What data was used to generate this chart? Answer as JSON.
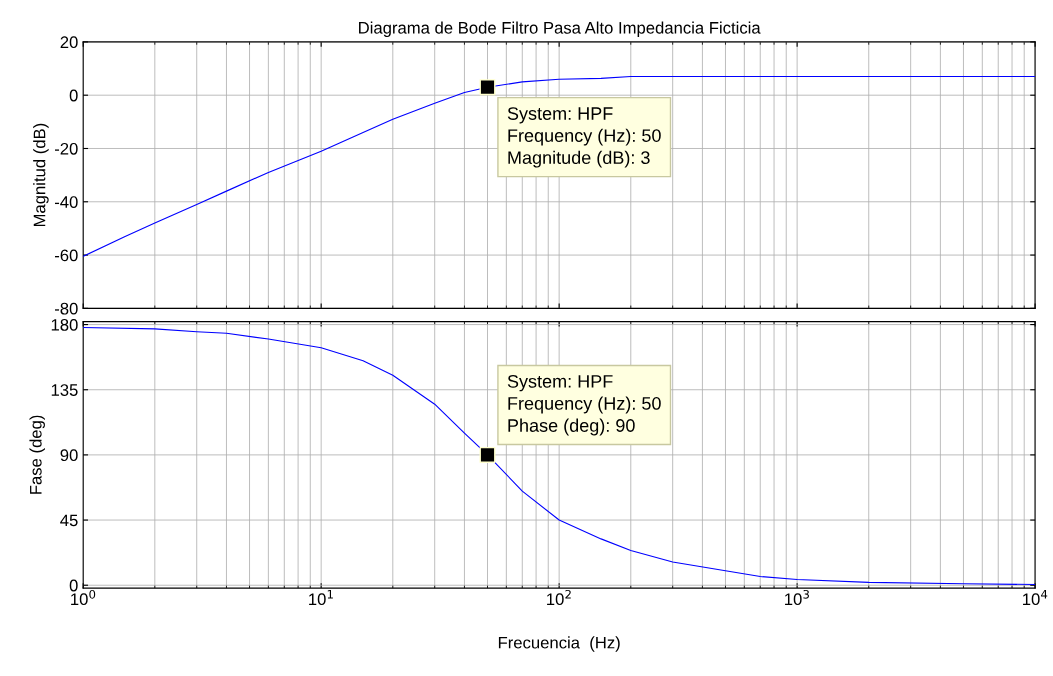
{
  "chart_data": [
    {
      "type": "line",
      "title": "Diagrama de Bode Filtro Pasa Alto Impedancia Ficticia",
      "ylabel": "Magnitud (dB)",
      "log": "x",
      "grid": true,
      "tick_labels": "y",
      "xlim": [
        1,
        10000
      ],
      "ylim": [
        -80,
        20
      ],
      "yticks": [
        -80,
        -60,
        -40,
        -20,
        0,
        20
      ],
      "xticks": [
        {
          "value": 1,
          "label": null
        },
        {
          "value": 10,
          "label": null
        },
        {
          "value": 100,
          "label": null
        },
        {
          "value": 1000,
          "label": null
        },
        {
          "value": 10000,
          "label": null
        }
      ],
      "series": [
        {
          "color": "#0000ff",
          "x": [
            1,
            1.5,
            2,
            3,
            4,
            6,
            10,
            15,
            20,
            30,
            40,
            50,
            70,
            100,
            150,
            200,
            1000,
            10000
          ],
          "values": [
            -60.5,
            -53,
            -48,
            -41,
            -36,
            -29,
            -21,
            -14,
            -9,
            -3,
            1,
            3,
            5,
            6,
            6.3,
            7,
            7,
            7
          ]
        },
        {
          "type": "scatter",
          "color": "#000000",
          "marker": "square",
          "x": [
            50
          ],
          "values": [
            3
          ]
        }
      ],
      "annotations": [
        {
          "text": "System: HPF\nFrequency (Hz): 50\nMagnitude (dB): 3",
          "x": 50,
          "y": 3
        }
      ]
    },
    {
      "type": "line",
      "xlabel": "Frecuencia  (Hz)",
      "ylabel": "Fase (deg)",
      "log": "x",
      "grid": true,
      "xlim": [
        1,
        10000
      ],
      "ylim": [
        -2,
        182
      ],
      "yticks": [
        0,
        45,
        90,
        135,
        180
      ],
      "xticks": [
        {
          "value": 1,
          "label": "10$^{0}$"
        },
        {
          "value": 10,
          "label": "10$^{1}$"
        },
        {
          "value": 100,
          "label": "10$^{2}$"
        },
        {
          "value": 1000,
          "label": "10$^{3}$"
        },
        {
          "value": 10000,
          "label": "10$^{4}$"
        }
      ],
      "series": [
        {
          "color": "#0000ff",
          "x": [
            1,
            2,
            3,
            4,
            6,
            10,
            15,
            20,
            30,
            40,
            50,
            70,
            100,
            150,
            200,
            300,
            500,
            700,
            1000,
            2000,
            5000,
            10000
          ],
          "values": [
            178,
            177,
            175,
            174,
            170,
            164,
            155,
            145,
            125,
            105,
            90,
            65,
            45,
            32,
            24,
            16,
            10,
            6,
            4,
            2,
            1,
            0.5
          ]
        },
        {
          "type": "scatter",
          "color": "#000000",
          "marker": "square",
          "x": [
            50
          ],
          "values": [
            90
          ]
        }
      ],
      "annotations": [
        {
          "text": "System: HPF\nFrequency (Hz): 50\nPhase (deg): 90",
          "x": 50,
          "y": 90
        }
      ]
    }
  ]
}
